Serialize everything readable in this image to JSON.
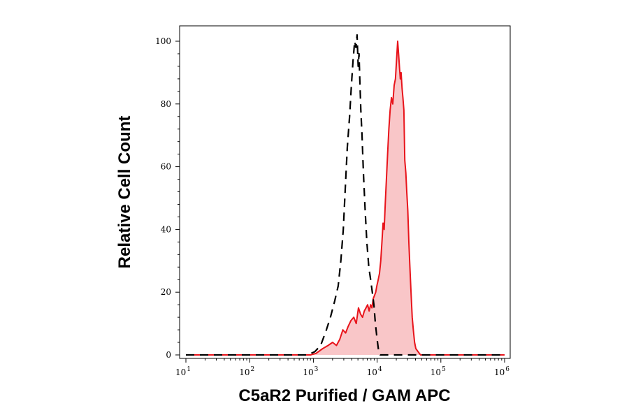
{
  "chart_data": {
    "type": "area",
    "xlabel": "C5aR2 Purified / GAM APC",
    "ylabel": "Relative Cell Count",
    "x_scale": "log",
    "xlim": [
      10,
      1000000
    ],
    "ylim": [
      0,
      100
    ],
    "x_ticks": [
      {
        "base": "10",
        "exp": "1"
      },
      {
        "base": "10",
        "exp": "2"
      },
      {
        "base": "10",
        "exp": "3"
      },
      {
        "base": "10",
        "exp": "4"
      },
      {
        "base": "10",
        "exp": "5"
      },
      {
        "base": "10",
        "exp": "6"
      }
    ],
    "y_ticks": [
      "0",
      "20",
      "40",
      "60",
      "80",
      "100"
    ],
    "grid": false,
    "series": [
      {
        "style": "dashed",
        "color": "#000000",
        "fill": "none",
        "points": [
          [
            10,
            0
          ],
          [
            800,
            0
          ],
          [
            1050,
            1
          ],
          [
            1300,
            3
          ],
          [
            1600,
            8
          ],
          [
            1850,
            12
          ],
          [
            2150,
            17
          ],
          [
            2450,
            22
          ],
          [
            2700,
            30
          ],
          [
            2950,
            40
          ],
          [
            3150,
            52
          ],
          [
            3400,
            66
          ],
          [
            3700,
            76
          ],
          [
            3950,
            86
          ],
          [
            4200,
            94
          ],
          [
            4450,
            100
          ],
          [
            4650,
            98
          ],
          [
            4850,
            102
          ],
          [
            5050,
            92
          ],
          [
            5200,
            96
          ],
          [
            5350,
            88
          ],
          [
            5550,
            78
          ],
          [
            5800,
            70
          ],
          [
            6100,
            58
          ],
          [
            6500,
            46
          ],
          [
            6900,
            36
          ],
          [
            7400,
            28
          ],
          [
            7900,
            24
          ],
          [
            8400,
            20
          ],
          [
            8900,
            16
          ],
          [
            9400,
            10
          ],
          [
            10000,
            5
          ],
          [
            10600,
            1
          ],
          [
            11200,
            0
          ],
          [
            1000000,
            0
          ]
        ]
      },
      {
        "style": "solid",
        "color": "#e8141b",
        "fill": "#f9c6c8",
        "points": [
          [
            10,
            0
          ],
          [
            900,
            0
          ],
          [
            1100,
            0.5
          ],
          [
            1400,
            2
          ],
          [
            1700,
            3
          ],
          [
            2000,
            4
          ],
          [
            2300,
            3
          ],
          [
            2600,
            5
          ],
          [
            2900,
            8
          ],
          [
            3200,
            7
          ],
          [
            3500,
            9
          ],
          [
            3900,
            11
          ],
          [
            4300,
            12
          ],
          [
            4700,
            10
          ],
          [
            5100,
            15
          ],
          [
            5500,
            13
          ],
          [
            5900,
            12
          ],
          [
            6300,
            14
          ],
          [
            6700,
            15
          ],
          [
            7100,
            16
          ],
          [
            7500,
            14
          ],
          [
            7900,
            16
          ],
          [
            8300,
            15
          ],
          [
            8700,
            18
          ],
          [
            9100,
            19
          ],
          [
            9500,
            20
          ],
          [
            9900,
            22
          ],
          [
            10400,
            24
          ],
          [
            10900,
            26
          ],
          [
            11400,
            30
          ],
          [
            11900,
            36
          ],
          [
            12400,
            42
          ],
          [
            12900,
            40
          ],
          [
            13400,
            48
          ],
          [
            14000,
            56
          ],
          [
            14600,
            64
          ],
          [
            15300,
            72
          ],
          [
            16000,
            78
          ],
          [
            16800,
            82
          ],
          [
            17600,
            80
          ],
          [
            18500,
            86
          ],
          [
            19400,
            88
          ],
          [
            20200,
            94
          ],
          [
            21000,
            100
          ],
          [
            21700,
            96
          ],
          [
            22400,
            92
          ],
          [
            23100,
            88
          ],
          [
            23800,
            90
          ],
          [
            24600,
            85
          ],
          [
            25400,
            82
          ],
          [
            26300,
            78
          ],
          [
            27200,
            62
          ],
          [
            28200,
            58
          ],
          [
            29200,
            52
          ],
          [
            30300,
            46
          ],
          [
            31500,
            36
          ],
          [
            32700,
            28
          ],
          [
            34000,
            20
          ],
          [
            35500,
            12
          ],
          [
            37000,
            8
          ],
          [
            38700,
            4
          ],
          [
            40500,
            2
          ],
          [
            44000,
            1
          ],
          [
            48000,
            0
          ],
          [
            1000000,
            0
          ]
        ]
      }
    ]
  }
}
